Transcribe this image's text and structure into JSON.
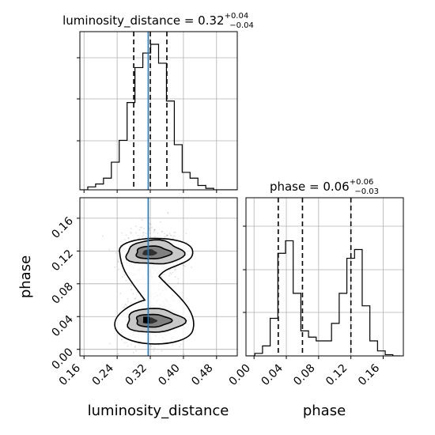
{
  "chart_data": {
    "type": "corner",
    "truth_color": "#1f77b4",
    "grid": true,
    "parameters": [
      "luminosity_distance",
      "phase"
    ],
    "panels": [
      {
        "id": "hist_luminosity_distance",
        "type": "histogram",
        "title": {
          "prefix": "luminosity_distance = 0.32",
          "sup": "+0.04",
          "sub": "−0.04"
        },
        "xlim": [
          0.15,
          0.53
        ],
        "xticks": [
          0.16,
          0.24,
          0.32,
          0.4,
          0.48
        ],
        "bin_edges": [
          0.15,
          0.169,
          0.188,
          0.207,
          0.226,
          0.245,
          0.264,
          0.283,
          0.302,
          0.321,
          0.34,
          0.359,
          0.378,
          0.397,
          0.416,
          0.435,
          0.454,
          0.473,
          0.492,
          0.511,
          0.53
        ],
        "counts": [
          0.0,
          0.02,
          0.04,
          0.08,
          0.19,
          0.34,
          0.6,
          0.84,
          0.94,
          1.0,
          0.87,
          0.61,
          0.31,
          0.12,
          0.08,
          0.03,
          0.01,
          0.0,
          0.0,
          0.0
        ],
        "quantile_lines": [
          0.28,
          0.32,
          0.36
        ],
        "truth": 0.315
      },
      {
        "id": "hist_phase",
        "type": "histogram",
        "title": {
          "prefix": "phase = 0.06",
          "sup": "+0.06",
          "sub": "−0.03"
        },
        "xlim": [
          -0.01,
          0.185
        ],
        "xticks": [
          0.0,
          0.04,
          0.08,
          0.12,
          0.16
        ],
        "xticklabels": [
          "0.00",
          "0.04",
          "0.08",
          "0.12",
          "0.16"
        ],
        "xlabel": "phase",
        "bin_edges": [
          -0.0085,
          0.001,
          0.0105,
          0.02,
          0.0295,
          0.039,
          0.0485,
          0.058,
          0.0675,
          0.077,
          0.0865,
          0.096,
          0.1055,
          0.115,
          0.1245,
          0.134,
          0.1435,
          0.153,
          0.1625,
          0.172,
          0.1815
        ],
        "counts": [
          0.0,
          0.02,
          0.08,
          0.3,
          0.82,
          0.92,
          0.5,
          0.2,
          0.15,
          0.12,
          0.12,
          0.26,
          0.5,
          0.78,
          0.85,
          0.4,
          0.12,
          0.04,
          0.01,
          0.0
        ],
        "quantile_lines": [
          0.03,
          0.06,
          0.12
        ]
      },
      {
        "id": "scatter_2d",
        "type": "density_contour",
        "xlim": [
          0.15,
          0.53
        ],
        "ylim": [
          -0.008,
          0.185
        ],
        "xticks": [
          0.16,
          0.24,
          0.32,
          0.4,
          0.48
        ],
        "xticklabels": [
          "0.16",
          "0.24",
          "0.32",
          "0.40",
          "0.48"
        ],
        "yticks": [
          0.0,
          0.04,
          0.08,
          0.12,
          0.16
        ],
        "yticklabels": [
          "0.00",
          "0.04",
          "0.08",
          "0.12",
          "0.16"
        ],
        "xlabel": "luminosity_distance",
        "ylabel": "phase",
        "modes": [
          {
            "x": 0.322,
            "y": 0.035,
            "sx": 0.028,
            "sy": 0.01,
            "weight": 0.52
          },
          {
            "x": 0.322,
            "y": 0.118,
            "sx": 0.028,
            "sy": 0.01,
            "weight": 0.48
          }
        ],
        "truth_x": 0.315
      }
    ]
  }
}
